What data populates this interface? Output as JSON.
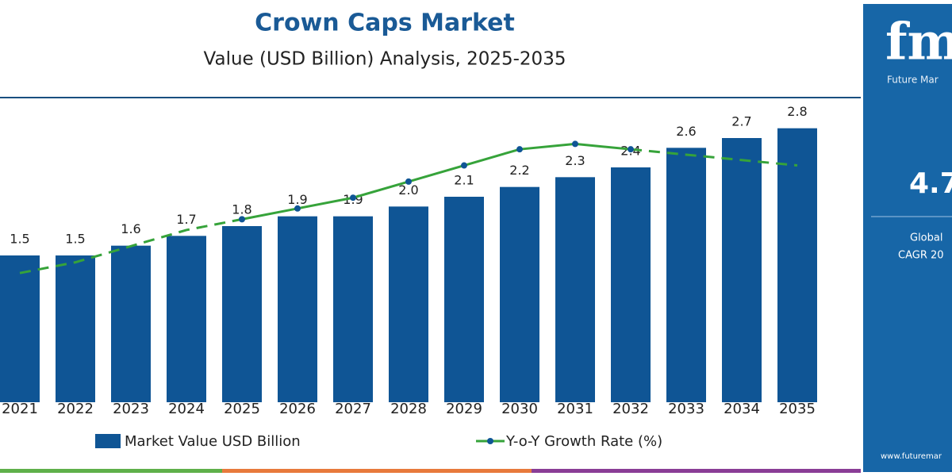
{
  "chart_data": {
    "type": "bar_line",
    "title": "Crown Caps Market",
    "subtitle": "Value (USD Billion) Analysis, 2025-2035",
    "categories": [
      "2021",
      "2022",
      "2023",
      "2024",
      "2025",
      "2026",
      "2027",
      "2028",
      "2029",
      "2030",
      "2031",
      "2032",
      "2033",
      "2034",
      "2035"
    ],
    "series": [
      {
        "name": "Market Value USD Billion",
        "type": "bar",
        "color": "#0f5595",
        "values": [
          1.5,
          1.5,
          1.6,
          1.7,
          1.8,
          1.9,
          1.9,
          2.0,
          2.1,
          2.2,
          2.3,
          2.4,
          2.6,
          2.7,
          2.8
        ],
        "value_labels": [
          "1.5",
          "1.5",
          "1.6",
          "1.7",
          "1.8",
          "1.9",
          "1.9",
          "2.0",
          "2.1",
          "2.2",
          "2.3",
          "2.4",
          "2.6",
          "2.7",
          "2.8"
        ]
      },
      {
        "name": "Y-o-Y Growth Rate (%)",
        "type": "line",
        "color": "#36a33a",
        "axis": "y2",
        "values": [
          2.4,
          2.6,
          2.9,
          3.2,
          3.4,
          3.6,
          3.8,
          4.1,
          4.4,
          4.7,
          4.8,
          4.7,
          4.6,
          4.5,
          4.4
        ]
      }
    ],
    "ylim": [
      0,
      3.3
    ],
    "y2lim": [
      0,
      6
    ]
  },
  "panel": {
    "logo": "fmi",
    "brand": "Future Mar",
    "headline": "4.7",
    "line1": "Global",
    "line2": "CAGR 20",
    "url": "www.futuremar"
  }
}
